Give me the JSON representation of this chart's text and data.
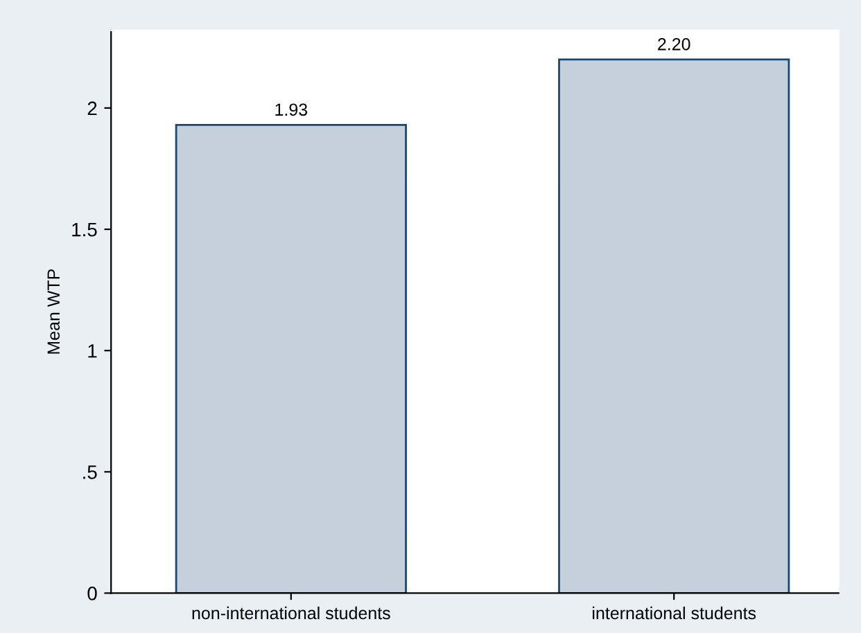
{
  "chart_data": {
    "type": "bar",
    "ylabel": "Mean WTP",
    "categories": [
      "non-international students",
      "international students"
    ],
    "values": [
      1.93,
      2.2
    ],
    "value_labels": [
      "1.93",
      "2.20"
    ],
    "color": "#c6d0dc",
    "ylim": [
      0,
      2.32
    ],
    "yticks": [
      0,
      {
        "value": 0.5,
        "label": ".5"
      },
      1,
      1.5,
      2
    ],
    "grid": false
  }
}
